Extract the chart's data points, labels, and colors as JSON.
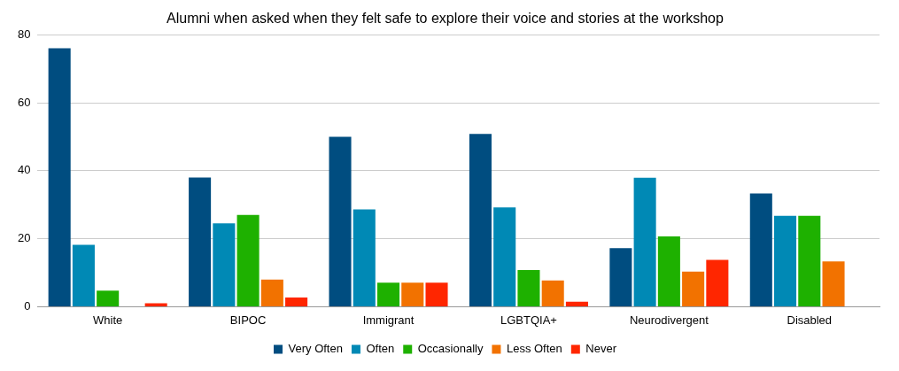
{
  "chart_data": {
    "type": "bar",
    "title": "Alumni when asked when they felt safe to explore their voice and stories at the workshop",
    "categories": [
      "White",
      "BIPOC",
      "Immigrant",
      "LGBTQIA+",
      "Neurodivergent",
      "Disabled"
    ],
    "series": [
      {
        "name": "Very Often",
        "color": "#004d80",
        "values": [
          76,
          38,
          50,
          50.8,
          17.2,
          33.3
        ]
      },
      {
        "name": "Often",
        "color": "#0089b5",
        "values": [
          18.2,
          24.5,
          28.6,
          29.2,
          37.9,
          26.7
        ]
      },
      {
        "name": "Occasionally",
        "color": "#1eb100",
        "values": [
          4.7,
          27,
          7.1,
          10.8,
          20.7,
          26.7
        ]
      },
      {
        "name": "Less Often",
        "color": "#f27200",
        "values": [
          0,
          8,
          7.1,
          7.7,
          10.3,
          13.3
        ]
      },
      {
        "name": "Never",
        "color": "#ff2600",
        "values": [
          1,
          2.7,
          7.1,
          1.5,
          13.8,
          0
        ]
      }
    ],
    "ylim": [
      0,
      80
    ],
    "yticks": [
      0,
      20,
      40,
      60,
      80
    ],
    "grid": "y",
    "legend": "bottom"
  }
}
